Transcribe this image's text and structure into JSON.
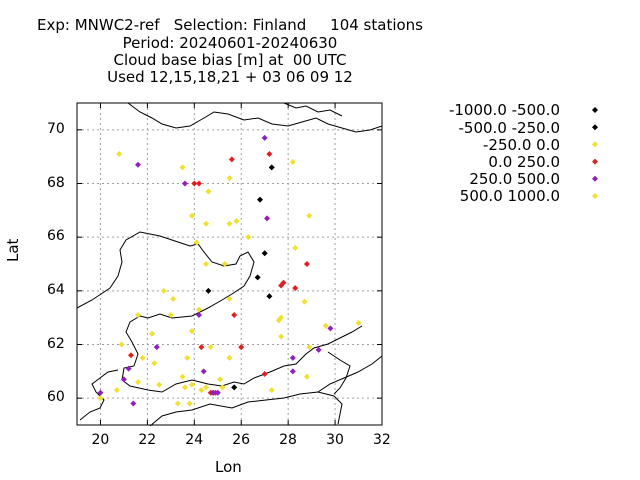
{
  "title_lines": [
    "Exp: MNWC2-ref   Selection: Finland     104 stations",
    "Period: 20240601-20240630",
    "Cloud base bias [m] at  00 UTC",
    "Used 12,15,18,21 + 03 06 09 12"
  ],
  "chart_data": {
    "type": "scatter",
    "xlabel": "Lon",
    "ylabel": "Lat",
    "xlim": [
      19,
      32
    ],
    "ylim": [
      59,
      71
    ],
    "xticks": [
      20,
      22,
      24,
      26,
      28,
      30,
      32
    ],
    "yticks": [
      60,
      62,
      64,
      66,
      68,
      70
    ],
    "grid": true,
    "legend_position": "right",
    "series": [
      {
        "name": "-1000.0 -500.0",
        "color": "#000000",
        "points": [
          [
            26.8,
            67.4
          ],
          [
            27.3,
            68.6
          ],
          [
            27.0,
            65.4
          ],
          [
            26.7,
            64.5
          ],
          [
            24.6,
            64.0
          ],
          [
            27.2,
            63.8
          ],
          [
            25.7,
            60.4
          ]
        ]
      },
      {
        "name": "-500.0 -250.0",
        "color": "#000000",
        "points": []
      },
      {
        "name": "-250.0 0.0",
        "color": "#f0e030",
        "points": [
          [
            20.8,
            69.1
          ],
          [
            23.5,
            68.6
          ],
          [
            25.5,
            68.2
          ],
          [
            24.6,
            67.7
          ],
          [
            23.9,
            66.8
          ],
          [
            24.5,
            66.5
          ],
          [
            25.5,
            66.5
          ],
          [
            25.8,
            66.6
          ],
          [
            26.3,
            66.0
          ],
          [
            28.9,
            66.8
          ],
          [
            24.1,
            65.8
          ],
          [
            24.5,
            65.0
          ],
          [
            25.3,
            65.0
          ],
          [
            28.3,
            65.6
          ],
          [
            28.2,
            68.8
          ],
          [
            22.7,
            64.0
          ],
          [
            23.1,
            63.7
          ],
          [
            25.5,
            63.7
          ],
          [
            28.7,
            63.6
          ],
          [
            21.6,
            63.1
          ],
          [
            23.0,
            63.1
          ],
          [
            24.2,
            63.3
          ],
          [
            27.7,
            63.0
          ],
          [
            27.6,
            62.9
          ],
          [
            22.2,
            62.4
          ],
          [
            23.9,
            62.5
          ],
          [
            27.7,
            62.3
          ],
          [
            29.6,
            62.7
          ],
          [
            31.0,
            62.8
          ],
          [
            20.9,
            62.0
          ],
          [
            21.8,
            61.5
          ],
          [
            23.7,
            61.5
          ],
          [
            24.7,
            61.9
          ],
          [
            25.5,
            61.5
          ],
          [
            28.9,
            61.9
          ],
          [
            22.3,
            61.3
          ],
          [
            25.1,
            60.7
          ],
          [
            27.3,
            60.3
          ],
          [
            28.8,
            60.8
          ],
          [
            20.0,
            60.0
          ],
          [
            20.7,
            60.3
          ],
          [
            22.5,
            60.5
          ],
          [
            23.5,
            60.8
          ],
          [
            23.9,
            60.5
          ],
          [
            24.3,
            60.3
          ],
          [
            24.8,
            60.2
          ],
          [
            23.3,
            59.8
          ],
          [
            23.8,
            59.8
          ],
          [
            24.5,
            60.4
          ],
          [
            25.2,
            60.4
          ],
          [
            21.6,
            60.6
          ],
          [
            23.6,
            60.4
          ]
        ]
      },
      {
        "name": "0.0 250.0",
        "color": "#e02020",
        "points": [
          [
            25.6,
            68.9
          ],
          [
            27.2,
            69.1
          ],
          [
            24.0,
            68.0
          ],
          [
            24.2,
            68.0
          ],
          [
            28.8,
            65.0
          ],
          [
            27.8,
            64.3
          ],
          [
            27.7,
            64.2
          ],
          [
            28.3,
            64.1
          ],
          [
            25.7,
            63.1
          ],
          [
            24.3,
            61.9
          ],
          [
            26.0,
            61.9
          ],
          [
            21.3,
            61.6
          ],
          [
            27.0,
            60.9
          ],
          [
            24.8,
            60.2
          ],
          [
            24.9,
            60.2
          ],
          [
            24.7,
            60.2
          ]
        ]
      },
      {
        "name": "250.0 500.0",
        "color": "#9020c0",
        "points": [
          [
            21.6,
            68.7
          ],
          [
            23.6,
            68.0
          ],
          [
            27.0,
            69.7
          ],
          [
            27.1,
            66.7
          ],
          [
            24.2,
            63.1
          ],
          [
            22.4,
            61.9
          ],
          [
            28.2,
            61.5
          ],
          [
            29.3,
            61.8
          ],
          [
            29.8,
            62.6
          ],
          [
            21.2,
            61.1
          ],
          [
            24.4,
            61.0
          ],
          [
            28.2,
            61.0
          ],
          [
            21.0,
            60.7
          ],
          [
            20.0,
            60.2
          ],
          [
            21.4,
            59.8
          ],
          [
            24.8,
            60.2
          ],
          [
            25.0,
            60.2
          ]
        ]
      },
      {
        "name": "500.0 1000.0",
        "color": "#f0e030",
        "points": []
      }
    ]
  },
  "legend_markers": [
    {
      "color": "#000000"
    },
    {
      "color": "#000000"
    },
    {
      "color": "#f0e030"
    },
    {
      "color": "#e02020"
    },
    {
      "color": "#9020c0"
    },
    {
      "color": "#f0e030"
    }
  ]
}
